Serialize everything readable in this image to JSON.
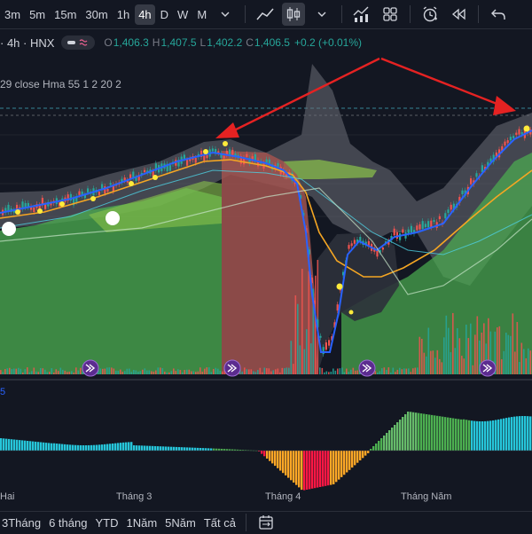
{
  "toolbar": {
    "timeframes": [
      "3m",
      "5m",
      "15m",
      "30m",
      "1h",
      "4h",
      "D",
      "W",
      "M"
    ],
    "active_timeframe": "4h",
    "icons": [
      "chevron-down-icon",
      "line-chart-icon",
      "candles-icon",
      "chevron-down-icon",
      "indicators-icon",
      "templates-icon",
      "alert-icon",
      "replay-icon",
      "undo-icon"
    ]
  },
  "legend": {
    "symbol": "· 4h · HNX",
    "open_label": "O",
    "open": "1,406.3",
    "high_label": "H",
    "high": "1,407.5",
    "low_label": "L",
    "low": "1,402.2",
    "close_label": "C",
    "close": "1,406.5",
    "change": "+0.2 (+0.01%)"
  },
  "indicator_label": "29 close Hma 55 1 2 20 2",
  "oscillator_label": "5",
  "xaxis": [
    "Hai",
    "Tháng 3",
    "Tháng 4",
    "Tháng Năm"
  ],
  "ranges": [
    "3Tháng",
    "6 tháng",
    "YTD",
    "1Năm",
    "5Năm",
    "Tất cả"
  ],
  "colors": {
    "background": "#131722",
    "up": "#26a69a",
    "down": "#ef5350",
    "arrow": "#e52222",
    "cloud": "#4caf50",
    "hma": "#2962ff",
    "ma": "#f5a623"
  }
}
